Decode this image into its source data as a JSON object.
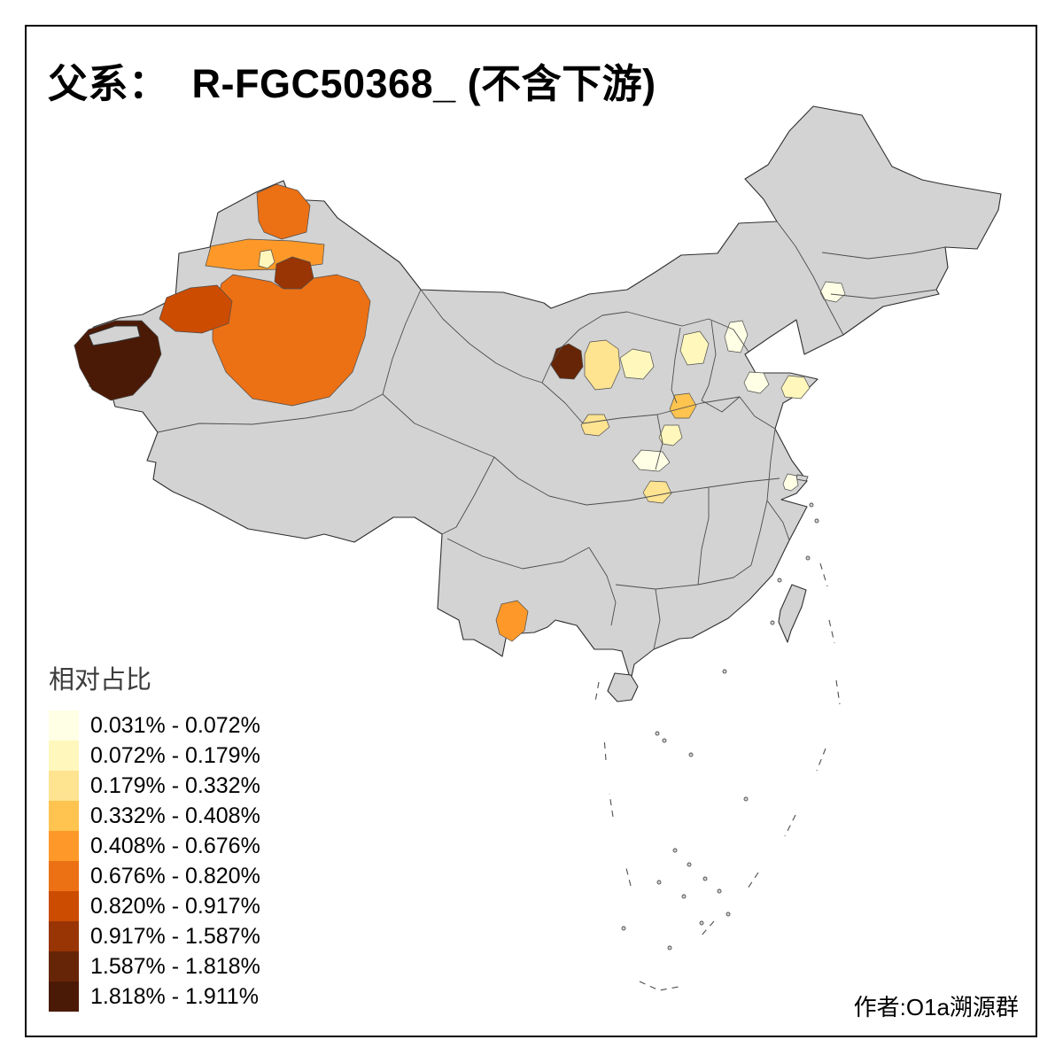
{
  "title": {
    "text": "父系：  R-FGC50368_ (不含下游)"
  },
  "legend": {
    "title": "相对占比",
    "entries": [
      {
        "label": "0.031% - 0.072%",
        "color": "#FFFFE5"
      },
      {
        "label": "0.072% - 0.179%",
        "color": "#FFF7BC"
      },
      {
        "label": "0.179% - 0.332%",
        "color": "#FEE391"
      },
      {
        "label": "0.332% - 0.408%",
        "color": "#FEC44F"
      },
      {
        "label": "0.408% - 0.676%",
        "color": "#FE9929"
      },
      {
        "label": "0.676% - 0.820%",
        "color": "#EC7014"
      },
      {
        "label": "0.820% - 0.917%",
        "color": "#CC4C02"
      },
      {
        "label": "0.917% - 1.587%",
        "color": "#993404"
      },
      {
        "label": "1.587% - 1.818%",
        "color": "#662506"
      },
      {
        "label": "1.818% - 1.911%",
        "color": "#4B1A06"
      }
    ]
  },
  "credit": {
    "text": "作者:O1a溯源群"
  },
  "frame": {
    "border_color": "#000000"
  },
  "map": {
    "base_fill": "#D3D3D3",
    "boundary_color": "#4D4D4D",
    "outline_color": "#2F2F2F",
    "regions": [
      {
        "id": "altay",
        "legend_class": 6,
        "location_hint": "far-north Xinjiang blob"
      },
      {
        "id": "tacheng-belt",
        "legend_class": 5,
        "location_hint": "orange belt, northern Xinjiang"
      },
      {
        "id": "shihezi",
        "legend_class": 2,
        "location_hint": "small pale enclave in northern Xinjiang belt"
      },
      {
        "id": "urumqi-changji",
        "legend_class": 8,
        "location_hint": "dark red-brown patch, north-central Xinjiang"
      },
      {
        "id": "central-xinjiang",
        "legend_class": 6,
        "location_hint": "large orange central/southern Xinjiang"
      },
      {
        "id": "aksu",
        "legend_class": 7,
        "location_hint": "deeper orange, west-central Xinjiang"
      },
      {
        "id": "kashgar",
        "legend_class": 10,
        "location_hint": "darkest brown region at far-west tip"
      },
      {
        "id": "ningxia-west",
        "legend_class": 9,
        "location_hint": "small dark red region, north-central China"
      },
      {
        "id": "ningxia-east",
        "legend_class": 3,
        "location_hint": "pale gold just east of dark region"
      },
      {
        "id": "yulin-ordos",
        "legend_class": 2,
        "location_hint": "pale patch further east"
      },
      {
        "id": "longdong",
        "legend_class": 3,
        "location_hint": "small gold patch south of Ningxia area"
      },
      {
        "id": "south-hebei",
        "legend_class": 2,
        "location_hint": "pale patch, North China plain"
      },
      {
        "id": "tianjin-cangzhou",
        "legend_class": 1,
        "location_hint": "very pale patch near Bohai gulf"
      },
      {
        "id": "liaoning-north",
        "legend_class": 1,
        "location_hint": "very pale patch in the northeast"
      },
      {
        "id": "shandong-west",
        "legend_class": 1,
        "location_hint": "very pale patch, west Shandong"
      },
      {
        "id": "shandong-peninsula",
        "legend_class": 2,
        "location_hint": "pale patch on east peninsula"
      },
      {
        "id": "north-henan",
        "legend_class": 4,
        "location_hint": "gold patch, central plain"
      },
      {
        "id": "central-henan",
        "legend_class": 2,
        "location_hint": "pale patch below the gold patch"
      },
      {
        "id": "northwest-hubei",
        "legend_class": 1,
        "location_hint": "very pale patch, central China"
      },
      {
        "id": "west-hubei",
        "legend_class": 3,
        "location_hint": "gold patch, central China"
      },
      {
        "id": "south-jiangsu",
        "legend_class": 1,
        "location_hint": "tiny pale patch near east coast"
      },
      {
        "id": "south-yunnan",
        "legend_class": 5,
        "location_hint": "orange patch in far south"
      }
    ]
  }
}
